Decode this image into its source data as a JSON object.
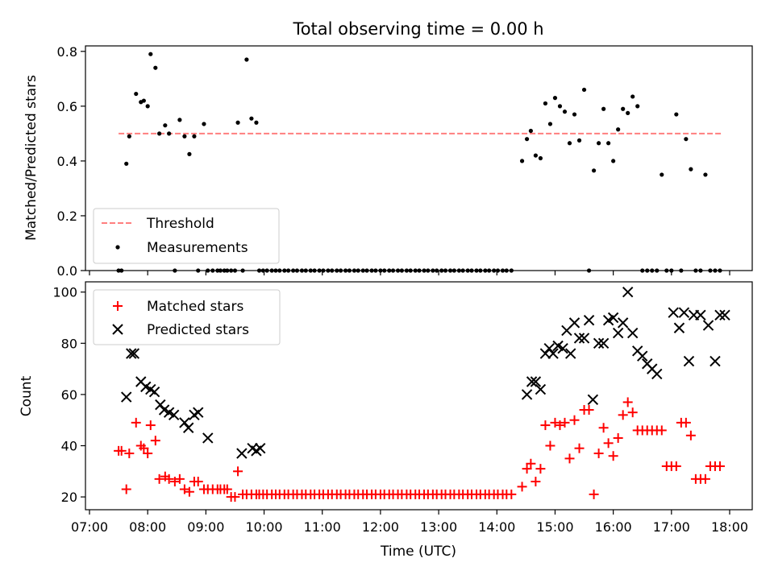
{
  "chart_data": [
    {
      "type": "scatter",
      "title": "Total observing time = 0.00 h",
      "xlabel": "",
      "ylabel": "Matched/Predicted stars",
      "xlim": [
        "07:00",
        "18:00"
      ],
      "ylim": [
        0,
        0.82
      ],
      "yticks": [
        0.0,
        0.2,
        0.4,
        0.6,
        0.8
      ],
      "ytick_labels": [
        "0.0",
        "0.2",
        "0.4",
        "0.6",
        "0.8"
      ],
      "legend": {
        "placement": "lower-left",
        "entries": [
          "Threshold",
          "Measurements"
        ]
      },
      "threshold": {
        "name": "Threshold",
        "y": 0.5,
        "x_start": "07:30",
        "x_end": "17:52",
        "color": "#ff7f7f"
      },
      "series": [
        {
          "name": "Measurements",
          "color": "#000000",
          "x": [
            "07:30",
            "07:33",
            "07:38",
            "07:41",
            "07:48",
            "07:53",
            "07:56",
            "08:00",
            "08:03",
            "08:08",
            "08:12",
            "08:18",
            "08:22",
            "08:28",
            "08:33",
            "08:38",
            "08:43",
            "08:48",
            "08:52",
            "08:58",
            "09:02",
            "09:07",
            "09:12",
            "09:15",
            "09:19",
            "09:22",
            "09:26",
            "09:30",
            "09:33",
            "09:38",
            "09:42",
            "09:47",
            "09:52",
            "09:55",
            "09:59",
            "10:03",
            "10:08",
            "10:12",
            "10:16",
            "10:21",
            "10:25",
            "10:30",
            "10:34",
            "10:39",
            "10:43",
            "10:48",
            "10:52",
            "10:57",
            "11:01",
            "11:06",
            "11:10",
            "11:15",
            "11:19",
            "11:24",
            "11:28",
            "11:33",
            "11:37",
            "11:42",
            "11:46",
            "11:51",
            "11:55",
            "12:00",
            "12:04",
            "12:09",
            "12:13",
            "12:18",
            "12:22",
            "12:27",
            "12:31",
            "12:36",
            "12:40",
            "12:45",
            "12:49",
            "12:54",
            "12:58",
            "13:03",
            "13:07",
            "13:12",
            "13:16",
            "13:21",
            "13:25",
            "13:30",
            "13:34",
            "13:39",
            "13:43",
            "13:48",
            "13:52",
            "13:57",
            "14:01",
            "14:06",
            "14:10",
            "14:15",
            "14:26",
            "14:31",
            "14:35",
            "14:40",
            "14:45",
            "14:50",
            "14:55",
            "15:00",
            "15:05",
            "15:10",
            "15:15",
            "15:20",
            "15:25",
            "15:30",
            "15:35",
            "15:40",
            "15:45",
            "15:50",
            "15:55",
            "16:00",
            "16:05",
            "16:10",
            "16:15",
            "16:20",
            "16:25",
            "16:30",
            "16:35",
            "16:40",
            "16:45",
            "16:50",
            "16:55",
            "17:00",
            "17:05",
            "17:10",
            "17:15",
            "17:20",
            "17:25",
            "17:30",
            "17:35",
            "17:40",
            "17:45",
            "17:50"
          ],
          "y": [
            0.0,
            0.0,
            0.39,
            0.49,
            0.645,
            0.615,
            0.62,
            0.6,
            0.79,
            0.74,
            0.5,
            0.53,
            0.5,
            0.0,
            0.55,
            0.49,
            0.425,
            0.49,
            0.0,
            0.535,
            0.0,
            0.0,
            0.0,
            0.0,
            0.0,
            0.0,
            0.0,
            0.0,
            0.54,
            0.0,
            0.77,
            0.555,
            0.54,
            0.0,
            0.0,
            0.0,
            0.0,
            0.0,
            0.0,
            0.0,
            0.0,
            0.0,
            0.0,
            0.0,
            0.0,
            0.0,
            0.0,
            0.0,
            0.0,
            0.0,
            0.0,
            0.0,
            0.0,
            0.0,
            0.0,
            0.0,
            0.0,
            0.0,
            0.0,
            0.0,
            0.0,
            0.0,
            0.0,
            0.0,
            0.0,
            0.0,
            0.0,
            0.0,
            0.0,
            0.0,
            0.0,
            0.0,
            0.0,
            0.0,
            0.0,
            0.0,
            0.0,
            0.0,
            0.0,
            0.0,
            0.0,
            0.0,
            0.0,
            0.0,
            0.0,
            0.0,
            0.0,
            0.0,
            0.0,
            0.0,
            0.0,
            0.0,
            0.4,
            0.48,
            0.51,
            0.42,
            0.41,
            0.61,
            0.535,
            0.63,
            0.6,
            0.58,
            0.465,
            0.57,
            0.475,
            0.66,
            0.0,
            0.365,
            0.465,
            0.59,
            0.465,
            0.4,
            0.515,
            0.59,
            0.575,
            0.635,
            0.6,
            0.0,
            0.0,
            0.0,
            0.0,
            0.35,
            0.0,
            0.0,
            0.57,
            0.0,
            0.48,
            0.37,
            0.0,
            0.0,
            0.35,
            0.0,
            0.0,
            0.0
          ]
        }
      ]
    },
    {
      "type": "scatter",
      "title": "",
      "xlabel": "Time (UTC)",
      "ylabel": "Count",
      "xlim": [
        "07:00",
        "18:00"
      ],
      "ylim": [
        15,
        104
      ],
      "xticks": [
        "07:00",
        "08:00",
        "09:00",
        "10:00",
        "11:00",
        "12:00",
        "13:00",
        "14:00",
        "15:00",
        "16:00",
        "17:00",
        "18:00"
      ],
      "yticks": [
        20,
        40,
        60,
        80,
        100
      ],
      "legend": {
        "placement": "upper-left",
        "entries": [
          "Matched stars",
          "Predicted stars"
        ]
      },
      "series": [
        {
          "name": "Matched stars",
          "marker": "plus",
          "color": "#ff0000",
          "x": [
            "07:30",
            "07:33",
            "07:38",
            "07:41",
            "07:48",
            "07:53",
            "07:56",
            "08:00",
            "08:03",
            "08:08",
            "08:12",
            "08:18",
            "08:22",
            "08:28",
            "08:33",
            "08:38",
            "08:43",
            "08:48",
            "08:52",
            "08:58",
            "09:02",
            "09:07",
            "09:12",
            "09:15",
            "09:19",
            "09:22",
            "09:26",
            "09:30",
            "09:33",
            "09:38",
            "09:42",
            "09:47",
            "09:52",
            "09:55",
            "09:59",
            "10:03",
            "10:08",
            "10:12",
            "10:16",
            "10:21",
            "10:25",
            "10:30",
            "10:34",
            "10:39",
            "10:43",
            "10:48",
            "10:52",
            "10:57",
            "11:01",
            "11:06",
            "11:10",
            "11:15",
            "11:19",
            "11:24",
            "11:28",
            "11:33",
            "11:37",
            "11:42",
            "11:46",
            "11:51",
            "11:55",
            "12:00",
            "12:04",
            "12:09",
            "12:13",
            "12:18",
            "12:22",
            "12:27",
            "12:31",
            "12:36",
            "12:40",
            "12:45",
            "12:49",
            "12:54",
            "12:58",
            "13:03",
            "13:07",
            "13:12",
            "13:16",
            "13:21",
            "13:25",
            "13:30",
            "13:34",
            "13:39",
            "13:43",
            "13:48",
            "13:52",
            "13:57",
            "14:01",
            "14:06",
            "14:10",
            "14:15",
            "14:26",
            "14:31",
            "14:35",
            "14:40",
            "14:45",
            "14:50",
            "14:55",
            "15:00",
            "15:05",
            "15:10",
            "15:15",
            "15:20",
            "15:25",
            "15:30",
            "15:35",
            "15:40",
            "15:45",
            "15:50",
            "15:55",
            "16:00",
            "16:05",
            "16:10",
            "16:15",
            "16:20",
            "16:25",
            "16:30",
            "16:35",
            "16:40",
            "16:45",
            "16:50",
            "16:55",
            "17:00",
            "17:05",
            "17:10",
            "17:15",
            "17:20",
            "17:25",
            "17:30",
            "17:35",
            "17:40",
            "17:45",
            "17:50"
          ],
          "y": [
            38,
            38,
            23,
            37,
            49,
            40,
            39,
            37,
            48,
            42,
            27,
            28,
            27,
            26,
            27,
            23,
            22,
            26,
            26,
            23,
            23,
            23,
            23,
            23,
            23,
            23,
            20,
            20,
            30,
            21,
            21,
            21,
            21,
            21,
            21,
            21,
            21,
            21,
            21,
            21,
            21,
            21,
            21,
            21,
            21,
            21,
            21,
            21,
            21,
            21,
            21,
            21,
            21,
            21,
            21,
            21,
            21,
            21,
            21,
            21,
            21,
            21,
            21,
            21,
            21,
            21,
            21,
            21,
            21,
            21,
            21,
            21,
            21,
            21,
            21,
            21,
            21,
            21,
            21,
            21,
            21,
            21,
            21,
            21,
            21,
            21,
            21,
            21,
            21,
            21,
            21,
            21,
            24,
            31,
            33,
            26,
            31,
            48,
            40,
            49,
            48,
            49,
            35,
            50,
            39,
            54,
            54,
            21,
            37,
            47,
            41,
            36,
            43,
            52,
            57,
            53,
            46,
            46,
            46,
            46,
            46,
            46,
            32,
            32,
            32,
            49,
            49,
            44,
            27,
            27,
            27,
            32,
            32,
            32
          ]
        },
        {
          "name": "Predicted stars",
          "marker": "x",
          "color": "#000000",
          "x": [
            "07:38",
            "07:43",
            "07:46",
            "07:53",
            "07:58",
            "08:03",
            "08:07",
            "08:13",
            "08:17",
            "08:22",
            "08:27",
            "08:38",
            "08:42",
            "08:48",
            "08:52",
            "09:02",
            "09:37",
            "09:48",
            "09:52",
            "09:56",
            "14:31",
            "14:36",
            "14:40",
            "14:45",
            "14:50",
            "14:54",
            "14:58",
            "15:03",
            "15:08",
            "15:12",
            "15:16",
            "15:20",
            "15:25",
            "15:30",
            "15:35",
            "15:39",
            "15:45",
            "15:50",
            "15:55",
            "16:00",
            "16:05",
            "16:10",
            "16:15",
            "16:20",
            "16:25",
            "16:30",
            "16:35",
            "16:40",
            "16:45",
            "17:02",
            "17:08",
            "17:13",
            "17:18",
            "17:23",
            "17:30",
            "17:38",
            "17:45",
            "17:50",
            "17:55"
          ],
          "y": [
            59,
            76,
            76,
            65,
            63,
            62,
            61,
            56,
            54,
            53,
            52,
            49,
            47,
            52,
            53,
            43,
            37,
            39,
            38,
            39,
            60,
            65,
            65,
            62,
            76,
            78,
            76,
            79,
            78,
            85,
            76,
            88,
            82,
            82,
            89,
            58,
            80,
            80,
            89,
            90,
            84,
            88,
            100,
            84,
            77,
            75,
            72,
            70,
            68,
            92,
            86,
            92,
            73,
            91,
            91,
            87,
            73,
            91,
            91
          ]
        }
      ]
    }
  ]
}
